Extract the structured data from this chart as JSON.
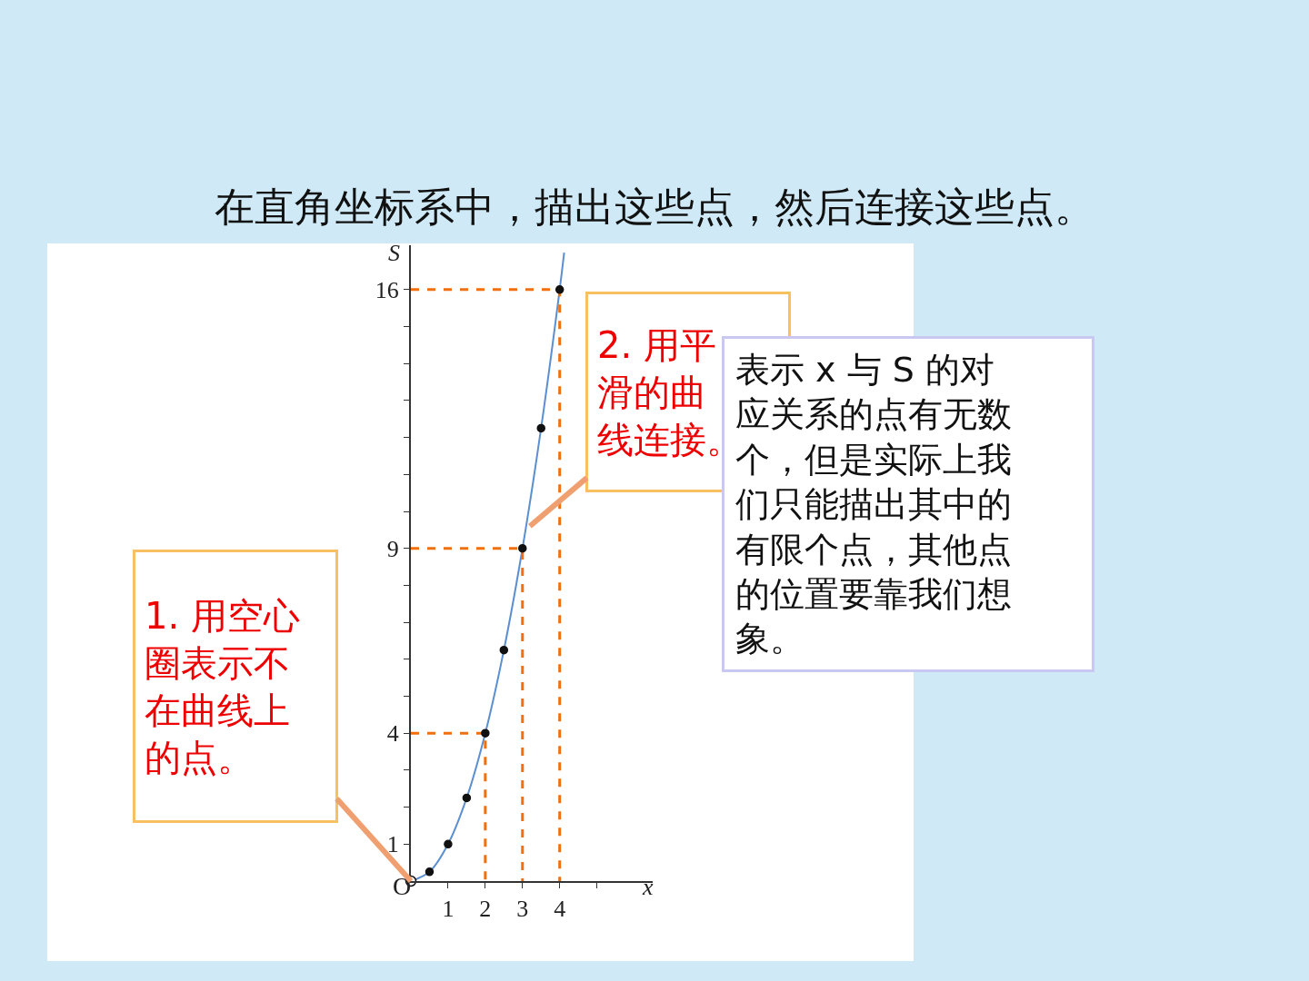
{
  "chart_data": {
    "type": "line",
    "title": "在直角坐标系中，描出这些点，然后连接这些点。",
    "xlabel": "x",
    "ylabel": "S",
    "xlim": [
      0,
      6.5
    ],
    "ylim": [
      0,
      17.2
    ],
    "xticks": [
      1,
      2,
      3,
      4,
      {
        "value": 5,
        "label": null
      }
    ],
    "yticks": [
      1,
      {
        "value": 2,
        "label": null
      },
      {
        "value": 3,
        "label": null
      },
      4,
      {
        "value": 5,
        "label": null
      },
      {
        "value": 6,
        "label": null
      },
      {
        "value": 7,
        "label": null
      },
      {
        "value": 8,
        "label": null
      },
      9,
      {
        "value": 10,
        "label": null
      },
      {
        "value": 11,
        "label": null
      },
      {
        "value": 12,
        "label": null
      },
      {
        "value": 13,
        "label": null
      },
      {
        "value": 14,
        "label": null
      },
      {
        "value": 15,
        "label": null
      },
      16
    ],
    "series": [
      {
        "color": "#5b8fd0",
        "line_style": "solid",
        "x": [
          0,
          0.5,
          1,
          1.5,
          2,
          2.5,
          3,
          3.5,
          4,
          4.12
        ],
        "values": [
          0,
          0.25,
          1,
          2.25,
          4,
          6.25,
          9,
          12.25,
          16,
          17
        ]
      },
      {
        "color": "#f07010",
        "line_style": "dashed",
        "x": [
          0,
          2,
          2
        ],
        "values": [
          4,
          4,
          0
        ]
      },
      {
        "color": "#f07010",
        "line_style": "dashed",
        "x": [
          0,
          3,
          3
        ],
        "values": [
          9,
          9,
          0
        ]
      },
      {
        "color": "#f07010",
        "line_style": "dashed",
        "x": [
          0,
          4,
          4
        ],
        "values": [
          16,
          16,
          0
        ]
      },
      {
        "type": "scatter",
        "color": "#111111",
        "marker": "circle",
        "x": [
          0.5,
          1,
          1.5,
          2,
          2.5,
          3,
          3.5,
          4
        ],
        "values": [
          0.25,
          1,
          2.25,
          4,
          6.25,
          9,
          12.25,
          16
        ]
      },
      {
        "type": "scatter",
        "color": "#ffffff",
        "marker": "circle",
        "x": [
          0
        ],
        "values": [
          0
        ]
      }
    ],
    "annotations": [
      "O",
      {
        "text": "1. 用空心圈表示不在曲线上的点。",
        "x": 0,
        "y": 0
      },
      {
        "text": "2. 用平滑的曲线连接。",
        "x": 3.2,
        "y": 9.6
      },
      "表示 x 与 S 的对应关系的点有无数个，但是实际上我们只能描出其中的有限个点，其他点的位置要靠我们想象。"
    ]
  }
}
